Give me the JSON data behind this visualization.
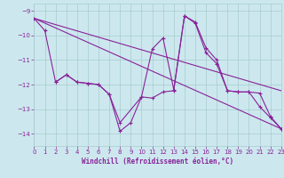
{
  "xlabel": "Windchill (Refroidissement éolien,°C)",
  "bg_color": "#cce8ee",
  "grid_color": "#a8cccc",
  "line_color": "#882299",
  "xlim": [
    0,
    23
  ],
  "ylim": [
    -14.5,
    -8.7
  ],
  "yticks": [
    -14,
    -13,
    -12,
    -11,
    -10,
    -9
  ],
  "xticks": [
    0,
    1,
    2,
    3,
    4,
    5,
    6,
    7,
    8,
    9,
    10,
    11,
    12,
    13,
    14,
    15,
    16,
    17,
    18,
    19,
    20,
    21,
    22,
    23
  ],
  "curve1_x": [
    0,
    1,
    2,
    3,
    4,
    5,
    6,
    7,
    8,
    9,
    10,
    11,
    12,
    13,
    14,
    15,
    16,
    17,
    18,
    19,
    20,
    21,
    22,
    23
  ],
  "curve1_y": [
    -9.3,
    -9.8,
    -11.9,
    -11.6,
    -11.9,
    -11.95,
    -12.0,
    -12.4,
    -13.9,
    -13.55,
    -12.5,
    -10.55,
    -10.1,
    -12.2,
    -9.2,
    -9.45,
    -10.5,
    -11.0,
    -12.25,
    -12.3,
    -12.3,
    -12.35,
    -13.3,
    -13.8
  ],
  "curve2_x": [
    2,
    3,
    4,
    5,
    6,
    7,
    8,
    10,
    11,
    12,
    13,
    14,
    15,
    16,
    17,
    18,
    19,
    20,
    21,
    22,
    23
  ],
  "curve2_y": [
    -11.9,
    -11.6,
    -11.9,
    -11.95,
    -12.0,
    -12.4,
    -13.55,
    -12.5,
    -12.55,
    -12.3,
    -12.25,
    -9.2,
    -9.5,
    -10.7,
    -11.15,
    -12.25,
    -12.3,
    -12.3,
    -12.9,
    -13.35,
    -13.8
  ],
  "line1_x": [
    0,
    23
  ],
  "line1_y": [
    -9.3,
    -12.25
  ],
  "line2_x": [
    0,
    23
  ],
  "line2_y": [
    -9.3,
    -13.8
  ]
}
